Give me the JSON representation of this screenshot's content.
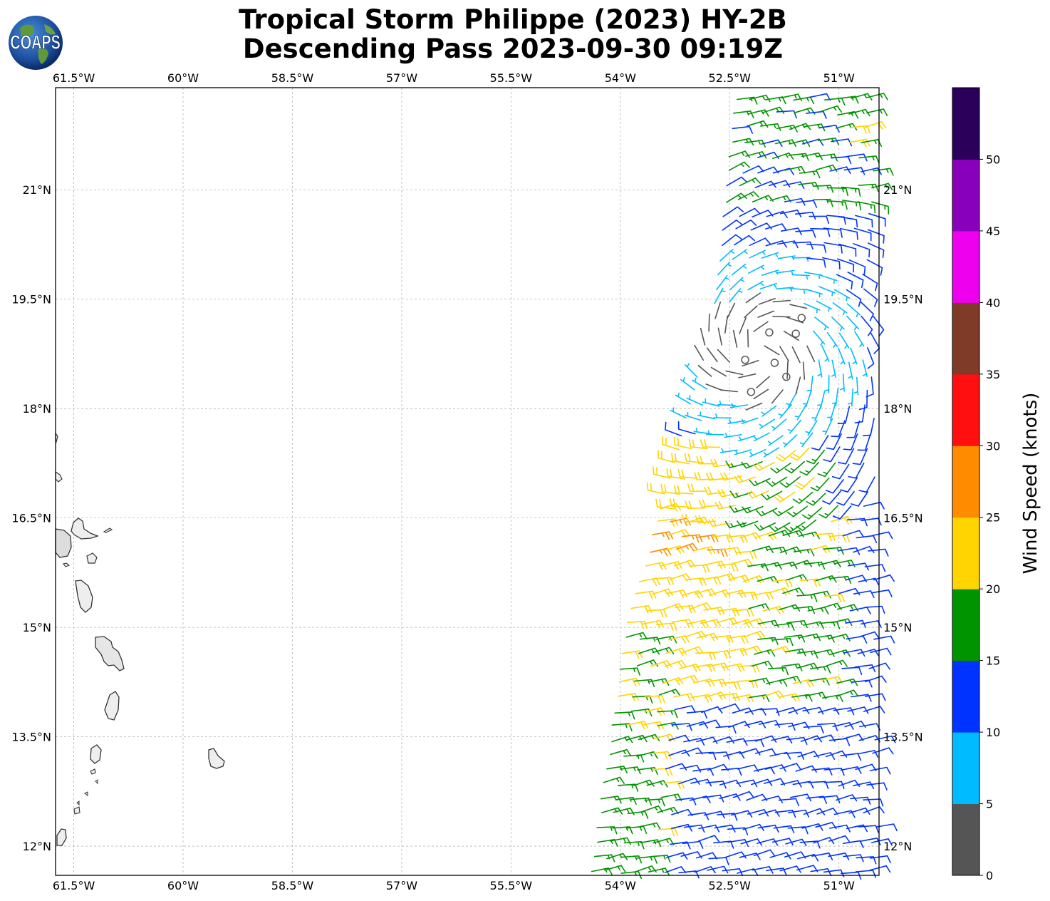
{
  "title_line1": "Tropical Storm Philippe (2023) HY-2B",
  "title_line2": "Descending Pass 2023-09-30 09:19Z",
  "logo_text": "COAPS",
  "lon_ticks": [
    {
      "value": -61.5,
      "label": "61.5°W"
    },
    {
      "value": -60,
      "label": "60°W"
    },
    {
      "value": -58.5,
      "label": "58.5°W"
    },
    {
      "value": -57,
      "label": "57°W"
    },
    {
      "value": -55.5,
      "label": "55.5°W"
    },
    {
      "value": -54,
      "label": "54°W"
    },
    {
      "value": -52.5,
      "label": "52.5°W"
    },
    {
      "value": -51,
      "label": "51°W"
    }
  ],
  "lat_ticks": [
    {
      "value": 21,
      "label": "21°N"
    },
    {
      "value": 19.5,
      "label": "19.5°N"
    },
    {
      "value": 18,
      "label": "18°N"
    },
    {
      "value": 16.5,
      "label": "16.5°N"
    },
    {
      "value": 15,
      "label": "15°N"
    },
    {
      "value": 13.5,
      "label": "13.5°N"
    },
    {
      "value": 12,
      "label": "12°N"
    }
  ],
  "map_extent": {
    "lon_min": -61.75,
    "lon_max": -50.45,
    "lat_min": 11.6,
    "lat_max": 22.4
  },
  "colorbar": {
    "label": "Wind Speed (knots)",
    "ticks": [
      "0",
      "5",
      "10",
      "15",
      "20",
      "25",
      "30",
      "35",
      "40",
      "45",
      "50"
    ],
    "bins": [
      {
        "min": 0,
        "max": 5,
        "color": "#555555"
      },
      {
        "min": 5,
        "max": 10,
        "color": "#00bbff"
      },
      {
        "min": 10,
        "max": 15,
        "color": "#0033ff"
      },
      {
        "min": 15,
        "max": 20,
        "color": "#009400"
      },
      {
        "min": 20,
        "max": 25,
        "color": "#ffd400"
      },
      {
        "min": 25,
        "max": 30,
        "color": "#ff8c00"
      },
      {
        "min": 30,
        "max": 35,
        "color": "#ff0f0f"
      },
      {
        "min": 35,
        "max": 40,
        "color": "#7f3a28"
      },
      {
        "min": 40,
        "max": 45,
        "color": "#ee00ee"
      },
      {
        "min": 45,
        "max": 50,
        "color": "#8800bb"
      },
      {
        "min": 50,
        "max": 55,
        "color": "#2a005a"
      }
    ]
  },
  "swath": {
    "storm_center": {
      "lon": -52.1,
      "lat": 18.8
    },
    "swath_edge_lon_at_lat": [
      [
        11.6,
        -54.5
      ],
      [
        15.0,
        -54.0
      ],
      [
        17.5,
        -53.3
      ],
      [
        19.3,
        -52.8
      ],
      [
        20.5,
        -52.7
      ],
      [
        22.4,
        -52.5
      ]
    ]
  }
}
